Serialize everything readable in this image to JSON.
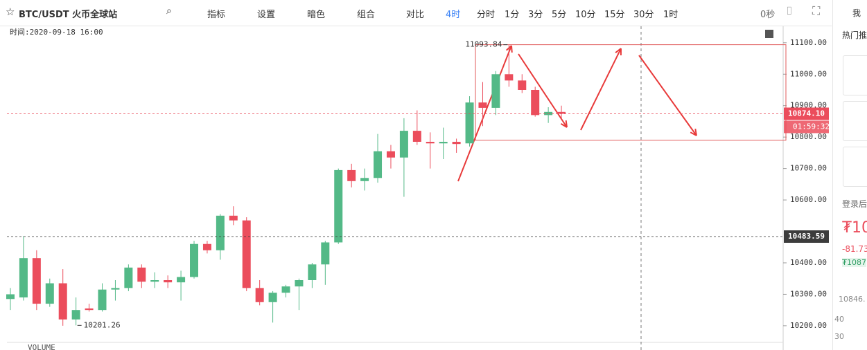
{
  "toolbar": {
    "symbol": "BTC/USDT 火币全球站",
    "tools": [
      "指标",
      "设置",
      "暗色",
      "组合",
      "对比"
    ],
    "interval": "4时",
    "intervals": [
      "分时",
      "1分",
      "3分",
      "5分",
      "10分",
      "15分",
      "30分",
      "1时"
    ],
    "countdown": "0秒"
  },
  "chart_data": {
    "type": "candlestick",
    "time_label": "时间:2020-09-18 16:00",
    "open": [
      10285,
      10290,
      10415,
      10270,
      10335,
      10220,
      10255,
      10250,
      10315,
      10320,
      10385,
      10340,
      10345,
      10338,
      10355,
      10460,
      10440,
      10550,
      10535,
      10320,
      10275,
      10305,
      10325,
      10345,
      10395,
      10465,
      10695,
      10660,
      10670,
      10755,
      10735,
      10820,
      10785,
      10780,
      10785,
      10780,
      10910,
      10893,
      11000,
      10980,
      10950,
      10870,
      10880
    ],
    "high": [
      10320,
      10485,
      10440,
      10350,
      10380,
      10290,
      10270,
      10335,
      10345,
      10395,
      10395,
      10370,
      10360,
      10375,
      10470,
      10470,
      10555,
      10580,
      10545,
      10345,
      10310,
      10330,
      10350,
      10400,
      10470,
      10700,
      10715,
      10700,
      10810,
      10775,
      10860,
      10885,
      10815,
      10830,
      10795,
      10930,
      10975,
      11010,
      11093.84,
      11000,
      10960,
      10895,
      10900
    ],
    "low": [
      10250,
      10280,
      10250,
      10260,
      10200,
      10201.26,
      10245,
      10245,
      10280,
      10310,
      10320,
      10320,
      10320,
      10280,
      10350,
      10430,
      10410,
      10520,
      10310,
      10265,
      10210,
      10290,
      10250,
      10320,
      10330,
      10460,
      10640,
      10630,
      10655,
      10700,
      10610,
      10775,
      10700,
      10730,
      10750,
      10770,
      10835,
      10870,
      10960,
      10940,
      10865,
      10845,
      10860
    ],
    "close": [
      10300,
      10415,
      10270,
      10335,
      10220,
      10250,
      10250,
      10315,
      10320,
      10385,
      10340,
      10345,
      10338,
      10355,
      10460,
      10440,
      10550,
      10535,
      10320,
      10275,
      10305,
      10325,
      10345,
      10395,
      10465,
      10695,
      10660,
      10670,
      10755,
      10735,
      10820,
      10785,
      10780,
      10785,
      10778,
      10910,
      10893,
      11000,
      10980,
      10950,
      10870,
      10880,
      10874.1
    ],
    "up_color": "#53b987",
    "down_color": "#eb4d5c",
    "ylim": [
      10147,
      11148
    ],
    "yticks": [
      {
        "value": 10200,
        "label": "10200.00"
      },
      {
        "value": 10300,
        "label": "10300.00"
      },
      {
        "value": 10400,
        "label": "10400.00"
      },
      {
        "value": 10600,
        "label": "10600.00"
      },
      {
        "value": 10700,
        "label": "10700.00"
      },
      {
        "value": 10800,
        "label": "10800.00"
      },
      {
        "value": 10900,
        "label": "10900.00"
      },
      {
        "value": 11000,
        "label": "11000.00"
      },
      {
        "value": 11100,
        "label": "11100.00"
      }
    ],
    "annotations": [
      {
        "label": "11093.84",
        "value": 11093.84
      },
      {
        "label": "10201.26",
        "value": 10201.26
      }
    ],
    "price_lines": [
      {
        "label": "10874.10",
        "value": 10874.1,
        "color": "#eb4d5c"
      },
      {
        "label": "10483.59",
        "value": 10483.59,
        "color": "#3c3c3c"
      }
    ],
    "countdown": "01:59:32",
    "volume_label": "VOLUME"
  },
  "sidebar": {
    "tab": "我",
    "hot": "热门推",
    "login": "登录后",
    "price": "₮10",
    "change": "-81.73",
    "sub_price": "₮1087",
    "low": "10846.",
    "scale": [
      "40",
      "30"
    ]
  }
}
